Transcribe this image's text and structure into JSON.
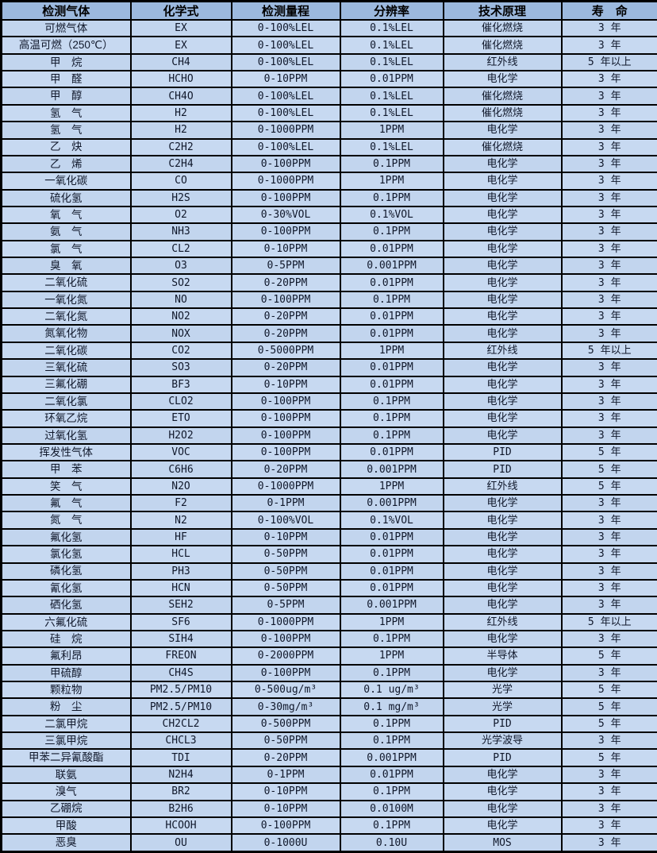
{
  "colors": {
    "header_bg": "#9cb9de",
    "row_odd": "#c2d5ee",
    "row_even": "#c7d9f1",
    "border": "#000000",
    "text": "#10182b"
  },
  "chart_data": {
    "type": "table",
    "columns": [
      "检测气体",
      "化学式",
      "检测量程",
      "分辨率",
      "技术原理",
      "寿　命"
    ],
    "rows": [
      [
        "可燃气体",
        "EX",
        "0-100%LEL",
        "0.1%LEL",
        "催化燃烧",
        "3 年"
      ],
      [
        "高温可燃（250℃）",
        "EX",
        "0-100%LEL",
        "0.1%LEL",
        "催化燃烧",
        "3 年"
      ],
      [
        "甲　烷",
        "CH4",
        "0-100%LEL",
        "0.1%LEL",
        "红外线",
        "5 年以上"
      ],
      [
        "甲　醛",
        "HCHO",
        "0-10PPM",
        "0.01PPM",
        "电化学",
        "3 年"
      ],
      [
        "甲　醇",
        "CH4O",
        "0-100%LEL",
        "0.1%LEL",
        "催化燃烧",
        "3 年"
      ],
      [
        "氢　气",
        "H2",
        "0-100%LEL",
        "0.1%LEL",
        "催化燃烧",
        "3 年"
      ],
      [
        "氢　气",
        "H2",
        "0-1000PPM",
        "1PPM",
        "电化学",
        "3 年"
      ],
      [
        "乙　炔",
        "C2H2",
        "0-100%LEL",
        "0.1%LEL",
        "催化燃烧",
        "3 年"
      ],
      [
        "乙　烯",
        "C2H4",
        "0-100PPM",
        "0.1PPM",
        "电化学",
        "3 年"
      ],
      [
        "一氧化碳",
        "CO",
        "0-1000PPM",
        "1PPM",
        "电化学",
        "3 年"
      ],
      [
        "硫化氢",
        "H2S",
        "0-100PPM",
        "0.1PPM",
        "电化学",
        "3 年"
      ],
      [
        "氧　气",
        "O2",
        "0-30%VOL",
        "0.1%VOL",
        "电化学",
        "3 年"
      ],
      [
        "氨　气",
        "NH3",
        "0-100PPM",
        "0.1PPM",
        "电化学",
        "3 年"
      ],
      [
        "氯　气",
        "CL2",
        "0-10PPM",
        "0.01PPM",
        "电化学",
        "3 年"
      ],
      [
        "臭　氧",
        "O3",
        "0-5PPM",
        "0.001PPM",
        "电化学",
        "3 年"
      ],
      [
        "二氧化硫",
        "SO2",
        "0-20PPM",
        "0.01PPM",
        "电化学",
        "3 年"
      ],
      [
        "一氧化氮",
        "NO",
        "0-100PPM",
        "0.1PPM",
        "电化学",
        "3 年"
      ],
      [
        "二氧化氮",
        "NO2",
        "0-20PPM",
        "0.01PPM",
        "电化学",
        "3 年"
      ],
      [
        "氮氧化物",
        "NOX",
        "0-20PPM",
        "0.01PPM",
        "电化学",
        "3 年"
      ],
      [
        "二氧化碳",
        "CO2",
        "0-5000PPM",
        "1PPM",
        "红外线",
        "5 年以上"
      ],
      [
        "三氧化硫",
        "SO3",
        "0-20PPM",
        "0.01PPM",
        "电化学",
        "3 年"
      ],
      [
        "三氟化硼",
        "BF3",
        "0-10PPM",
        "0.01PPM",
        "电化学",
        "3 年"
      ],
      [
        "二氧化氯",
        "CLO2",
        "0-100PPM",
        "0.1PPM",
        "电化学",
        "3 年"
      ],
      [
        "环氧乙烷",
        "ETO",
        "0-100PPM",
        "0.1PPM",
        "电化学",
        "3 年"
      ],
      [
        "过氧化氢",
        "H2O2",
        "0-100PPM",
        "0.1PPM",
        "电化学",
        "3 年"
      ],
      [
        "挥发性气体",
        "VOC",
        "0-100PPM",
        "0.01PPM",
        "PID",
        "5 年"
      ],
      [
        "甲　苯",
        "C6H6",
        "0-20PPM",
        "0.001PPM",
        "PID",
        "5 年"
      ],
      [
        "笑　气",
        "N2O",
        "0-1000PPM",
        "1PPM",
        "红外线",
        "5 年"
      ],
      [
        "氟　气",
        "F2",
        "0-1PPM",
        "0.001PPM",
        "电化学",
        "3 年"
      ],
      [
        "氮　气",
        "N2",
        "0-100%VOL",
        "0.1%VOL",
        "电化学",
        "3 年"
      ],
      [
        "氟化氢",
        "HF",
        "0-10PPM",
        "0.01PPM",
        "电化学",
        "3 年"
      ],
      [
        "氯化氢",
        "HCL",
        "0-50PPM",
        "0.01PPM",
        "电化学",
        "3 年"
      ],
      [
        "磷化氢",
        "PH3",
        "0-50PPM",
        "0.01PPM",
        "电化学",
        "3 年"
      ],
      [
        "氰化氢",
        "HCN",
        "0-50PPM",
        "0.01PPM",
        "电化学",
        "3 年"
      ],
      [
        "硒化氢",
        "SEH2",
        "0-5PPM",
        "0.001PPM",
        "电化学",
        "3 年"
      ],
      [
        "六氟化硫",
        "SF6",
        "0-1000PPM",
        "1PPM",
        "红外线",
        "5 年以上"
      ],
      [
        "硅　烷",
        "SIH4",
        "0-100PPM",
        "0.1PPM",
        "电化学",
        "3 年"
      ],
      [
        "氟利昂",
        "FREON",
        "0-2000PPM",
        "1PPM",
        "半导体",
        "5 年"
      ],
      [
        "甲硫醇",
        "CH4S",
        "0-100PPM",
        "0.1PPM",
        "电化学",
        "3 年"
      ],
      [
        "颗粒物",
        "PM2.5/PM10",
        "0-500ug/m³",
        "0.1 ug/m³",
        "光学",
        "5 年"
      ],
      [
        "粉　尘",
        "PM2.5/PM10",
        "0-30mg/m³",
        "0.1 mg/m³",
        "光学",
        "5 年"
      ],
      [
        "二氯甲烷",
        "CH2CL2",
        "0-500PPM",
        "0.1PPM",
        "PID",
        "5 年"
      ],
      [
        "三氯甲烷",
        "CHCL3",
        "0-50PPM",
        "0.1PPM",
        "光学波导",
        "3 年"
      ],
      [
        "甲苯二异氰酸酯",
        "TDI",
        "0-20PPM",
        "0.001PPM",
        "PID",
        "5 年"
      ],
      [
        "联氨",
        "N2H4",
        "0-1PPM",
        "0.01PPM",
        "电化学",
        "3 年"
      ],
      [
        "溴气",
        "BR2",
        "0-10PPM",
        "0.1PPM",
        "电化学",
        "3 年"
      ],
      [
        "乙硼烷",
        "B2H6",
        "0-10PPM",
        "0.0100M",
        "电化学",
        "3 年"
      ],
      [
        "甲酸",
        "HCOOH",
        "0-100PPM",
        "0.1PPM",
        "电化学",
        "3 年"
      ],
      [
        "恶臭",
        "OU",
        "0-1000U",
        "0.10U",
        "MOS",
        "3 年"
      ]
    ]
  }
}
